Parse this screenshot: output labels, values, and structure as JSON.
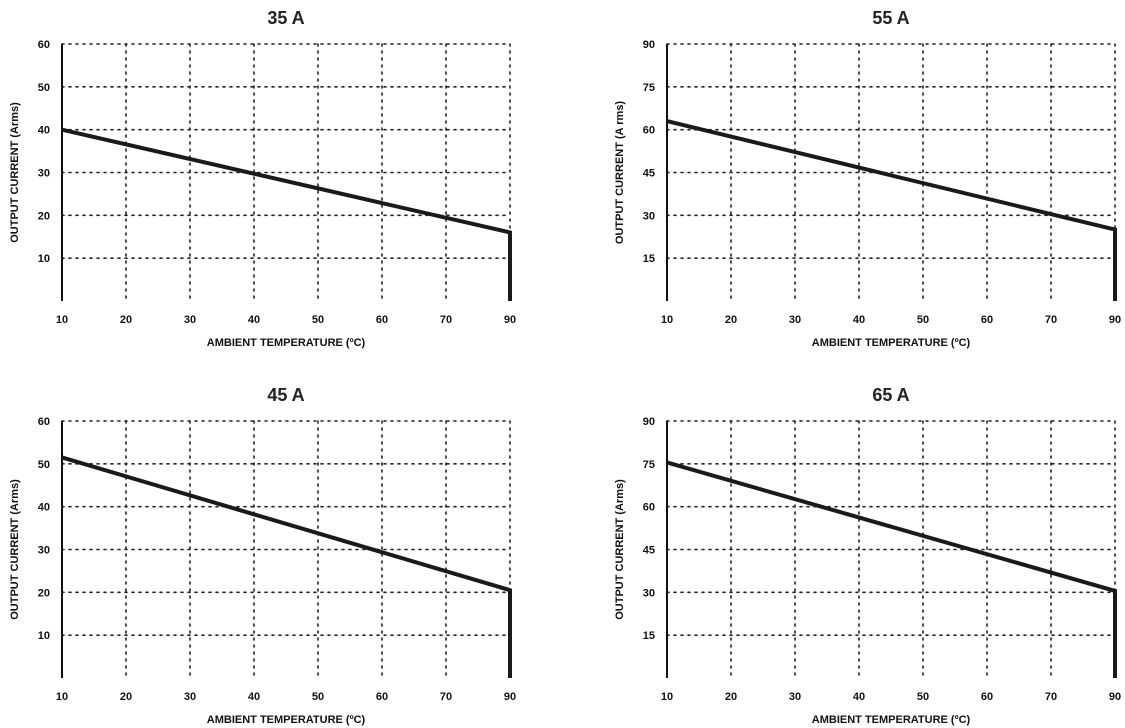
{
  "chart_data": [
    {
      "type": "line",
      "title": "35 A",
      "xlabel": "AMBIENT TEMPERATURE (ºC)",
      "ylabel": "OUTPUT CURRENT (Arms)",
      "xlim": [
        10,
        90
      ],
      "ylim": [
        0,
        60
      ],
      "xticks": [
        10,
        20,
        30,
        40,
        50,
        60,
        70,
        90
      ],
      "yticks": [
        10,
        20,
        30,
        40,
        50,
        60
      ],
      "grid": true,
      "series": [
        {
          "x": [
            10,
            90,
            90
          ],
          "y": [
            40,
            16,
            0
          ]
        }
      ]
    },
    {
      "type": "line",
      "title": "55 A",
      "xlabel": "AMBIENT TEMPERATURE (ºC)",
      "ylabel": "OUTPUT CURRENT (A rms)",
      "xlim": [
        10,
        90
      ],
      "ylim": [
        0,
        90
      ],
      "xticks": [
        10,
        20,
        30,
        40,
        50,
        60,
        70,
        90
      ],
      "yticks": [
        15,
        30,
        45,
        60,
        75,
        90
      ],
      "grid": true,
      "series": [
        {
          "x": [
            10,
            90,
            90
          ],
          "y": [
            63,
            25,
            0
          ]
        }
      ]
    },
    {
      "type": "line",
      "title": "45 A",
      "xlabel": "AMBIENT TEMPERATURE (ºC)",
      "ylabel": "OUTPUT CURRENT (Arms)",
      "xlim": [
        10,
        90
      ],
      "ylim": [
        0,
        60
      ],
      "xticks": [
        10,
        20,
        30,
        40,
        50,
        60,
        70,
        90
      ],
      "yticks": [
        10,
        20,
        30,
        40,
        50,
        60
      ],
      "grid": true,
      "series": [
        {
          "x": [
            10,
            90,
            90
          ],
          "y": [
            51.5,
            20.5,
            0
          ]
        }
      ]
    },
    {
      "type": "line",
      "title": "65 A",
      "xlabel": "AMBIENT TEMPERATURE (ºC)",
      "ylabel": "OUTPUT CURRENT (Arms)",
      "xlim": [
        10,
        90
      ],
      "ylim": [
        0,
        90
      ],
      "xticks": [
        10,
        20,
        30,
        40,
        50,
        60,
        70,
        90
      ],
      "yticks": [
        15,
        30,
        45,
        60,
        75,
        90
      ],
      "grid": true,
      "series": [
        {
          "x": [
            10,
            90,
            90
          ],
          "y": [
            75.5,
            30.5,
            0
          ]
        }
      ]
    }
  ]
}
